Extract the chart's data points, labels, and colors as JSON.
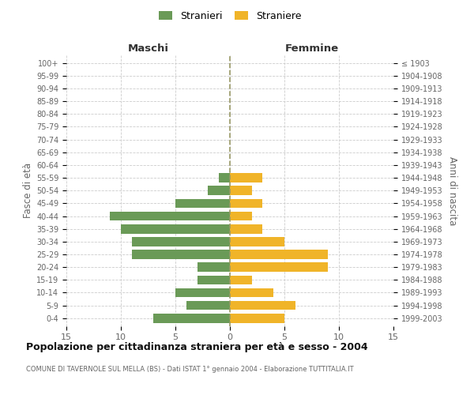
{
  "age_groups": [
    "100+",
    "95-99",
    "90-94",
    "85-89",
    "80-84",
    "75-79",
    "70-74",
    "65-69",
    "60-64",
    "55-59",
    "50-54",
    "45-49",
    "40-44",
    "35-39",
    "30-34",
    "25-29",
    "20-24",
    "15-19",
    "10-14",
    "5-9",
    "0-4"
  ],
  "birth_years": [
    "≤ 1903",
    "1904-1908",
    "1909-1913",
    "1914-1918",
    "1919-1923",
    "1924-1928",
    "1929-1933",
    "1934-1938",
    "1939-1943",
    "1944-1948",
    "1949-1953",
    "1954-1958",
    "1959-1963",
    "1964-1968",
    "1969-1973",
    "1974-1978",
    "1979-1983",
    "1984-1988",
    "1989-1993",
    "1994-1998",
    "1999-2003"
  ],
  "males": [
    0,
    0,
    0,
    0,
    0,
    0,
    0,
    0,
    0,
    1,
    2,
    5,
    11,
    10,
    9,
    9,
    3,
    3,
    5,
    4,
    7
  ],
  "females": [
    0,
    0,
    0,
    0,
    0,
    0,
    0,
    0,
    0,
    3,
    2,
    3,
    2,
    3,
    5,
    9,
    9,
    2,
    4,
    6,
    5
  ],
  "male_color": "#6a9a57",
  "female_color": "#f0b429",
  "dashed_line_color": "#999966",
  "grid_color": "#cccccc",
  "background_color": "#ffffff",
  "title": "Popolazione per cittadinanza straniera per età e sesso - 2004",
  "subtitle": "COMUNE DI TAVERNOLE SUL MELLA (BS) - Dati ISTAT 1° gennaio 2004 - Elaborazione TUTTITALIA.IT",
  "xlabel_left": "Maschi",
  "xlabel_right": "Femmine",
  "ylabel_left": "Fasce di età",
  "ylabel_right": "Anni di nascita",
  "legend_male": "Stranieri",
  "legend_female": "Straniere",
  "xlim": 15,
  "tick_color": "#666666"
}
